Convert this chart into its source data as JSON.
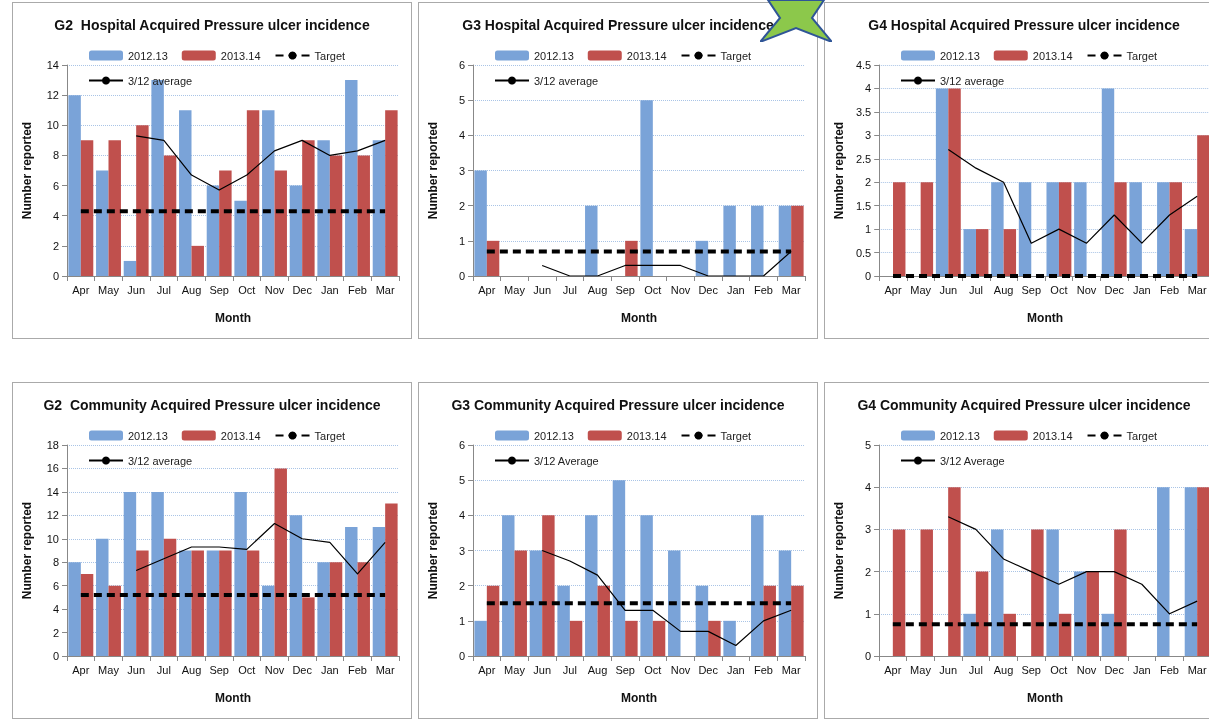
{
  "chart_data": [
    {
      "type": "bar",
      "title": "G2  Hospital Acquired Pressure ulcer incidence",
      "xlabel": "Month",
      "ylabel": "Number reported",
      "categories": [
        "Apr",
        "May",
        "Jun",
        "Jul",
        "Aug",
        "Sep",
        "Oct",
        "Nov",
        "Dec",
        "Jan",
        "Feb",
        "Mar"
      ],
      "ylim": [
        0,
        14
      ],
      "yticks": [
        0,
        2,
        4,
        6,
        8,
        10,
        12,
        14
      ],
      "grid": "y",
      "legend": "top",
      "marker": "none",
      "series": [
        {
          "name": "2012.13",
          "color": "#7aa3d8",
          "values": [
            12,
            7,
            1,
            13,
            11,
            6,
            5,
            11,
            6,
            9,
            13,
            9
          ]
        },
        {
          "name": "2013.14",
          "color": "#c0504d",
          "values": [
            9,
            9,
            10,
            8,
            2,
            7,
            11,
            7,
            9,
            8,
            8,
            11
          ]
        },
        {
          "name": "Target",
          "type": "line",
          "line_style": "dashed",
          "color": "#000000",
          "values": [
            4.3,
            4.3,
            4.3,
            4.3,
            4.3,
            4.3,
            4.3,
            4.3,
            4.3,
            4.3,
            4.3,
            4.3
          ]
        },
        {
          "name": "3/12 average",
          "type": "line",
          "line_style": "solid",
          "color": "#000000",
          "values": [
            null,
            null,
            9.3,
            9,
            6.7,
            5.7,
            6.7,
            8.3,
            9,
            8,
            8.3,
            9
          ]
        }
      ]
    },
    {
      "type": "bar",
      "title": "G3 Hospital Acquired Pressure ulcer incidence",
      "xlabel": "Month",
      "ylabel": "Number reported",
      "categories": [
        "Apr",
        "May",
        "Jun",
        "Jul",
        "Aug",
        "Sep",
        "Oct",
        "Nov",
        "Dec",
        "Jan",
        "Feb",
        "Mar"
      ],
      "ylim": [
        0,
        6
      ],
      "yticks": [
        0,
        1,
        2,
        3,
        4,
        5,
        6
      ],
      "grid": "y",
      "legend": "top",
      "marker": "none",
      "series": [
        {
          "name": "2012.13",
          "color": "#7aa3d8",
          "values": [
            3,
            0,
            0,
            0,
            2,
            0,
            5,
            0,
            1,
            2,
            2,
            2
          ]
        },
        {
          "name": "2013.14",
          "color": "#c0504d",
          "values": [
            1,
            0,
            0,
            0,
            0,
            1,
            0,
            0,
            0,
            0,
            0,
            2
          ]
        },
        {
          "name": "Target",
          "type": "line",
          "line_style": "dashed",
          "color": "#000000",
          "values": [
            0.7,
            0.7,
            0.7,
            0.7,
            0.7,
            0.7,
            0.7,
            0.7,
            0.7,
            0.7,
            0.7,
            0.7
          ]
        },
        {
          "name": "3/12 average",
          "type": "line",
          "line_style": "solid",
          "color": "#000000",
          "values": [
            null,
            null,
            0.3,
            0,
            0,
            0.3,
            0.3,
            0.3,
            0,
            0,
            0,
            0.7
          ]
        }
      ]
    },
    {
      "type": "bar",
      "title": "G4 Hospital Acquired Pressure ulcer incidence",
      "xlabel": "Month",
      "ylabel": "Number reported",
      "categories": [
        "Apr",
        "May",
        "Jun",
        "Jul",
        "Aug",
        "Sep",
        "Oct",
        "Nov",
        "Dec",
        "Jan",
        "Feb",
        "Mar"
      ],
      "ylim": [
        0,
        4.5
      ],
      "yticks": [
        0,
        0.5,
        1,
        1.5,
        2,
        2.5,
        3,
        3.5,
        4,
        4.5
      ],
      "grid": "y",
      "legend": "top",
      "marker": "none",
      "series": [
        {
          "name": "2012.13",
          "color": "#7aa3d8",
          "values": [
            0,
            0,
            4,
            1,
            2,
            2,
            2,
            2,
            4,
            2,
            2,
            1
          ]
        },
        {
          "name": "2013.14",
          "color": "#c0504d",
          "values": [
            2,
            2,
            4,
            1,
            1,
            0,
            2,
            0,
            2,
            0,
            2,
            3
          ]
        },
        {
          "name": "Target",
          "type": "line",
          "line_style": "dashed",
          "color": "#000000",
          "values": [
            0,
            0,
            0,
            0,
            0,
            0,
            0,
            0,
            0,
            0,
            0,
            0
          ]
        },
        {
          "name": "3/12 average",
          "type": "line",
          "line_style": "solid",
          "color": "#000000",
          "values": [
            null,
            null,
            2.7,
            2.3,
            2,
            0.7,
            1,
            0.7,
            1.3,
            0.7,
            1.3,
            1.7
          ]
        }
      ]
    },
    {
      "type": "bar",
      "title": "G2  Community Acquired Pressure ulcer incidence",
      "xlabel": "Month",
      "ylabel": "Number reported",
      "categories": [
        "Apr",
        "May",
        "Jun",
        "Jul",
        "Aug",
        "Sep",
        "Oct",
        "Nov",
        "Dec",
        "Jan",
        "Feb",
        "Mar"
      ],
      "ylim": [
        0,
        18
      ],
      "yticks": [
        0,
        2,
        4,
        6,
        8,
        10,
        12,
        14,
        16,
        18
      ],
      "grid": "y",
      "legend": "top",
      "marker": "none",
      "series": [
        {
          "name": "2012.13",
          "color": "#7aa3d8",
          "values": [
            8,
            10,
            14,
            14,
            9,
            9,
            14,
            6,
            12,
            8,
            11,
            11
          ]
        },
        {
          "name": "2013.14",
          "color": "#c0504d",
          "values": [
            7,
            6,
            9,
            10,
            9,
            9,
            9,
            16,
            5,
            8,
            8,
            13
          ]
        },
        {
          "name": "Target",
          "type": "line",
          "line_style": "dashed",
          "color": "#000000",
          "values": [
            5.2,
            5.2,
            5.2,
            5.2,
            5.2,
            5.2,
            5.2,
            5.2,
            5.2,
            5.2,
            5.2,
            5.2
          ]
        },
        {
          "name": "3/12 average",
          "type": "line",
          "line_style": "solid",
          "color": "#000000",
          "values": [
            null,
            null,
            7.3,
            8.3,
            9.3,
            9.3,
            9.1,
            11.3,
            10,
            9.7,
            7,
            9.7
          ]
        }
      ]
    },
    {
      "type": "bar",
      "title": "G3 Community Acquired Pressure ulcer incidence",
      "xlabel": "Month",
      "ylabel": "Number reported",
      "categories": [
        "Apr",
        "May",
        "Jun",
        "Jul",
        "Aug",
        "Sep",
        "Oct",
        "Nov",
        "Dec",
        "Jan",
        "Feb",
        "Mar"
      ],
      "ylim": [
        0,
        6
      ],
      "yticks": [
        0,
        1,
        2,
        3,
        4,
        5,
        6
      ],
      "grid": "y",
      "legend": "top",
      "marker": "none",
      "series": [
        {
          "name": "2012.13",
          "color": "#7aa3d8",
          "values": [
            1,
            4,
            3,
            2,
            4,
            5,
            4,
            3,
            2,
            1,
            4,
            3
          ]
        },
        {
          "name": "2013.14",
          "color": "#c0504d",
          "values": [
            2,
            3,
            4,
            1,
            2,
            1,
            1,
            0,
            1,
            0,
            2,
            2
          ]
        },
        {
          "name": "Target",
          "type": "line",
          "line_style": "dashed",
          "color": "#000000",
          "values": [
            1.5,
            1.5,
            1.5,
            1.5,
            1.5,
            1.5,
            1.5,
            1.5,
            1.5,
            1.5,
            1.5,
            1.5
          ]
        },
        {
          "name": "3/12 Average",
          "type": "line",
          "line_style": "solid",
          "color": "#000000",
          "values": [
            null,
            null,
            3,
            2.7,
            2.3,
            1.3,
            1.3,
            0.7,
            0.7,
            0.3,
            1,
            1.3
          ]
        }
      ]
    },
    {
      "type": "bar",
      "title": "G4 Community Acquired Pressure ulcer incidence",
      "xlabel": "Month",
      "ylabel": "Number reported",
      "categories": [
        "Apr",
        "May",
        "Jun",
        "Jul",
        "Aug",
        "Sep",
        "Oct",
        "Nov",
        "Dec",
        "Jan",
        "Feb",
        "Mar"
      ],
      "ylim": [
        0,
        5
      ],
      "yticks": [
        0,
        1,
        2,
        3,
        4,
        5
      ],
      "grid": "y",
      "legend": "top",
      "marker": "none",
      "series": [
        {
          "name": "2012.13",
          "color": "#7aa3d8",
          "values": [
            0,
            0,
            0,
            1,
            3,
            0,
            3,
            2,
            1,
            0,
            4,
            4
          ]
        },
        {
          "name": "2013.14",
          "color": "#c0504d",
          "values": [
            3,
            3,
            4,
            2,
            1,
            3,
            1,
            2,
            3,
            0,
            0,
            4
          ]
        },
        {
          "name": "Target",
          "type": "line",
          "line_style": "dashed",
          "color": "#000000",
          "values": [
            0.75,
            0.75,
            0.75,
            0.75,
            0.75,
            0.75,
            0.75,
            0.75,
            0.75,
            0.75,
            0.75,
            0.75
          ]
        },
        {
          "name": "3/12 Average",
          "type": "line",
          "line_style": "solid",
          "color": "#000000",
          "values": [
            null,
            null,
            3.3,
            3,
            2.3,
            2,
            1.7,
            2,
            2,
            1.7,
            1,
            1.3
          ]
        }
      ]
    }
  ]
}
